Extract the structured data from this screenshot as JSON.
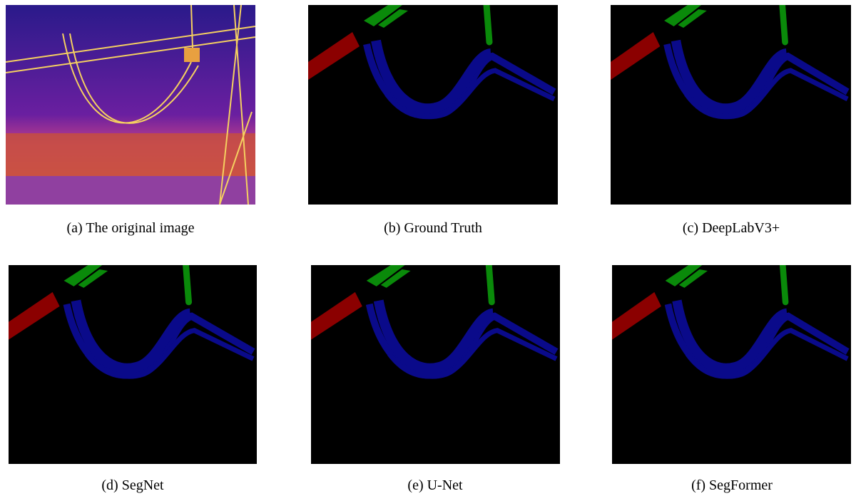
{
  "panels": [
    {
      "label": "(a)",
      "caption": "The original image"
    },
    {
      "label": "(b)",
      "caption": "Ground Truth"
    },
    {
      "label": "(c)",
      "caption": "DeepLabV3+"
    },
    {
      "label": "(d)",
      "caption": "SegNet"
    },
    {
      "label": "(e)",
      "caption": "U-Net"
    },
    {
      "label": "(f)",
      "caption": "SegFormer"
    }
  ]
}
